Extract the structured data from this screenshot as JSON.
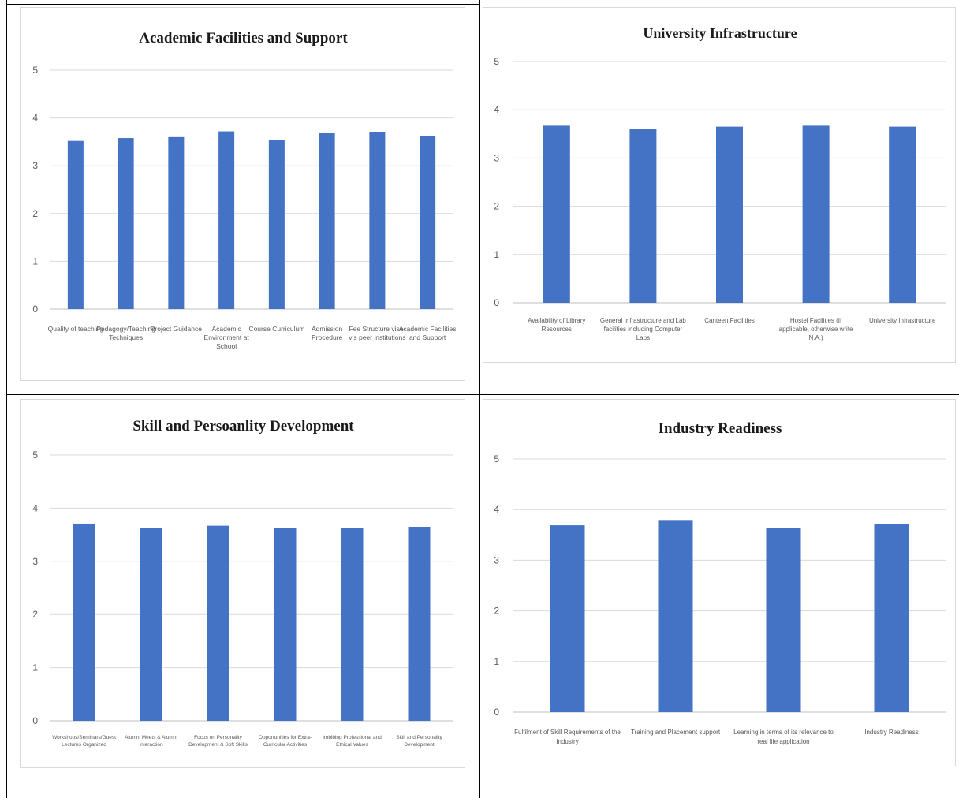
{
  "chart_data": [
    {
      "type": "bar",
      "title": "Academic Facilities and Support",
      "xlabel": "",
      "ylabel": "",
      "ylim": [
        0,
        5
      ],
      "yticks": [
        "0",
        "1",
        "2",
        "3",
        "4",
        "5"
      ],
      "categories": [
        [
          "Quality of teaching"
        ],
        [
          "Pedagogy/Teaching",
          "Techniques"
        ],
        [
          "Project Guidance"
        ],
        [
          "Academic",
          "Environment at",
          "School"
        ],
        [
          "Course Curriculum"
        ],
        [
          "Admission",
          "Procedure"
        ],
        [
          "Fee Structure vise-",
          "vis peer institutions"
        ],
        [
          "Academic Facilities",
          "and Support"
        ]
      ],
      "values": [
        3.52,
        3.58,
        3.6,
        3.72,
        3.54,
        3.68,
        3.7,
        3.63
      ],
      "bar_color": "#4472c4",
      "grid": true,
      "legend": "none"
    },
    {
      "type": "bar",
      "title": "University Infrastructure",
      "xlabel": "",
      "ylabel": "",
      "ylim": [
        0,
        5
      ],
      "yticks": [
        "0",
        "1",
        "2",
        "3",
        "4",
        "5"
      ],
      "categories": [
        [
          "Availability of Library",
          "Resources"
        ],
        [
          "General Infrastructure and Lab",
          "facilities including Computer",
          "Labs"
        ],
        [
          "Canteen Facilities"
        ],
        [
          "Hostel Facilities (If",
          "applicable, otherwise write",
          "N.A.)"
        ],
        [
          "University Infrastructure"
        ]
      ],
      "values": [
        3.67,
        3.61,
        3.65,
        3.67,
        3.65
      ],
      "bar_color": "#4472c4",
      "grid": true,
      "legend": "none"
    },
    {
      "type": "bar",
      "title": "Skill and Persoanlity Development",
      "xlabel": "",
      "ylabel": "",
      "ylim": [
        0,
        5
      ],
      "yticks": [
        "0",
        "1",
        "2",
        "3",
        "4",
        "5"
      ],
      "categories": [
        [
          "Workshops/Seminars/Guest",
          "Lectures Organized"
        ],
        [
          "Alumni Meets & Alumni",
          "Interaction"
        ],
        [
          "Focus on Personality",
          "Development & Soft Skills"
        ],
        [
          "Opportunities for Extra-",
          "Curricular Activities"
        ],
        [
          "Imbibing Professional and",
          "Ethical Values"
        ],
        [
          "Skill and Personality",
          "Development"
        ]
      ],
      "values": [
        3.71,
        3.62,
        3.67,
        3.63,
        3.63,
        3.65
      ],
      "bar_color": "#4472c4",
      "grid": true,
      "legend": "none"
    },
    {
      "type": "bar",
      "title": "Industry Readiness",
      "xlabel": "",
      "ylabel": "",
      "ylim": [
        0,
        5
      ],
      "yticks": [
        "0",
        "1",
        "2",
        "3",
        "4",
        "5"
      ],
      "categories": [
        [
          "Fulfilment of Skill Requirements of the",
          "Industry"
        ],
        [
          "Training and Placement support"
        ],
        [
          "Learning in terms of its relevance to",
          "real life application"
        ],
        [
          "Industry Readiness"
        ]
      ],
      "values": [
        3.69,
        3.78,
        3.63,
        3.71
      ],
      "bar_color": "#4472c4",
      "grid": true,
      "legend": "none"
    }
  ]
}
